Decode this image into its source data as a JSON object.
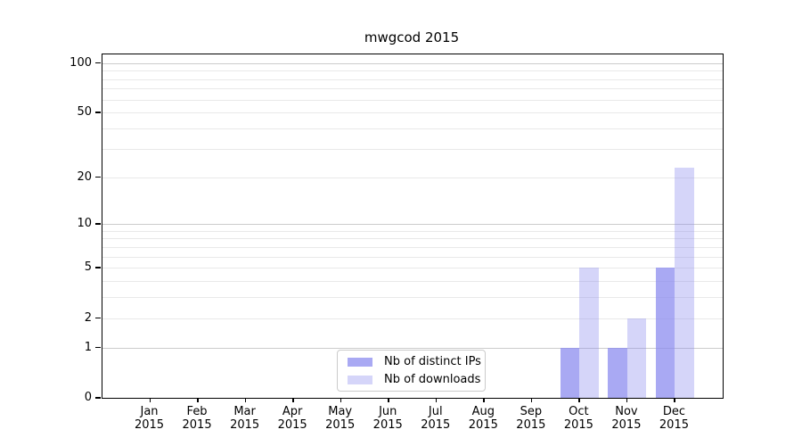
{
  "chart_data": {
    "type": "bar",
    "title": "mwgcod 2015",
    "year_label": "2015",
    "categories": [
      "Jan",
      "Feb",
      "Mar",
      "Apr",
      "May",
      "Jun",
      "Jul",
      "Aug",
      "Sep",
      "Oct",
      "Nov",
      "Dec"
    ],
    "series": [
      {
        "name": "Nb of distinct IPs",
        "color": "#8888ee",
        "alpha": 0.72,
        "values": [
          0,
          0,
          0,
          0,
          0,
          0,
          0,
          0,
          0,
          1,
          1,
          5
        ]
      },
      {
        "name": "Nb of downloads",
        "color": "#8888ee",
        "alpha": 0.35,
        "values": [
          0,
          0,
          0,
          0,
          0,
          0,
          0,
          0,
          0,
          5,
          2,
          23
        ]
      }
    ],
    "yscale": "log1p",
    "ylim": [
      0,
      113
    ],
    "yticks": [
      0,
      1,
      2,
      5,
      10,
      20,
      50,
      100
    ],
    "ytick_labels": [
      "0",
      "1",
      "2",
      "5",
      "10",
      "20",
      "50",
      "100"
    ],
    "xlabel": "",
    "ylabel": "",
    "grid": {
      "enabled": true,
      "minor_values": [
        2,
        3,
        4,
        5,
        6,
        7,
        8,
        9,
        20,
        30,
        40,
        50,
        60,
        70,
        80,
        90
      ],
      "major_values": [
        1,
        10,
        100
      ]
    },
    "legend": {
      "position": "lower-center",
      "entries": [
        "Nb of distinct IPs",
        "Nb of downloads"
      ]
    }
  }
}
